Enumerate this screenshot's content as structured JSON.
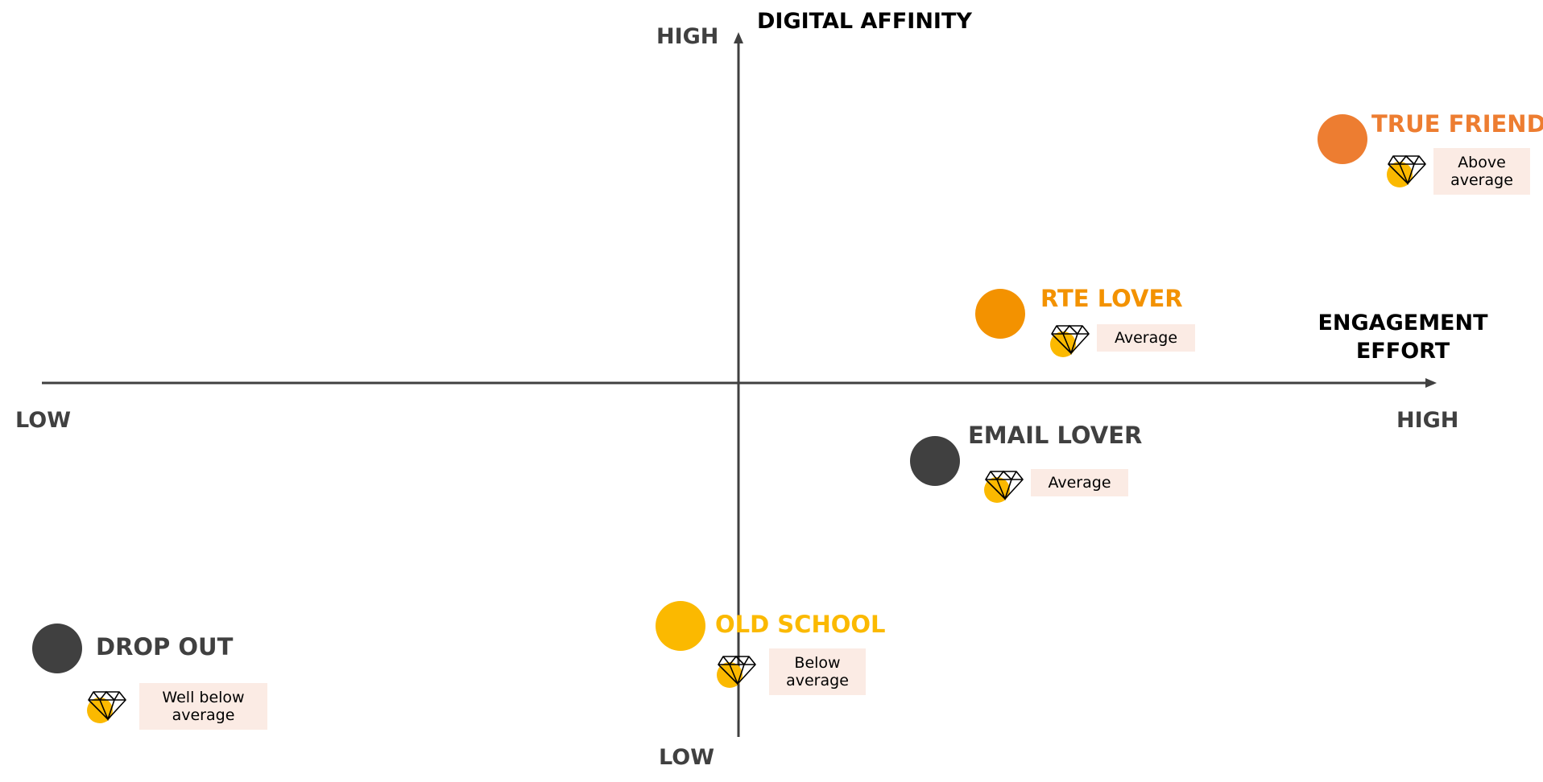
{
  "axes": {
    "vertical": {
      "title": "DIGITAL AFFINITY",
      "high_label": "HIGH",
      "low_label": "LOW"
    },
    "horizontal": {
      "title_line1": "ENGAGEMENT",
      "title_line2": "EFFORT",
      "low_label": "LOW",
      "high_label": "HIGH"
    }
  },
  "segments": [
    {
      "id": "true-friend",
      "name": "TRUE FRIEND",
      "value_label": "Above average",
      "color": "#ed7d31"
    },
    {
      "id": "rte-lover",
      "name": "RTE LOVER",
      "value_label": "Average",
      "color": "#f39200"
    },
    {
      "id": "email-lover",
      "name": "EMAIL LOVER",
      "value_label": "Average",
      "color": "#404040"
    },
    {
      "id": "old-school",
      "name": "OLD SCHOOL",
      "value_label": "Below average",
      "color": "#fbb900"
    },
    {
      "id": "drop-out",
      "name": "DROP OUT",
      "value_label": "Well below average",
      "color": "#404040"
    }
  ],
  "icon": {
    "name": "diamond-icon",
    "accent_color": "#fbb900"
  },
  "axis_color": "#404040"
}
